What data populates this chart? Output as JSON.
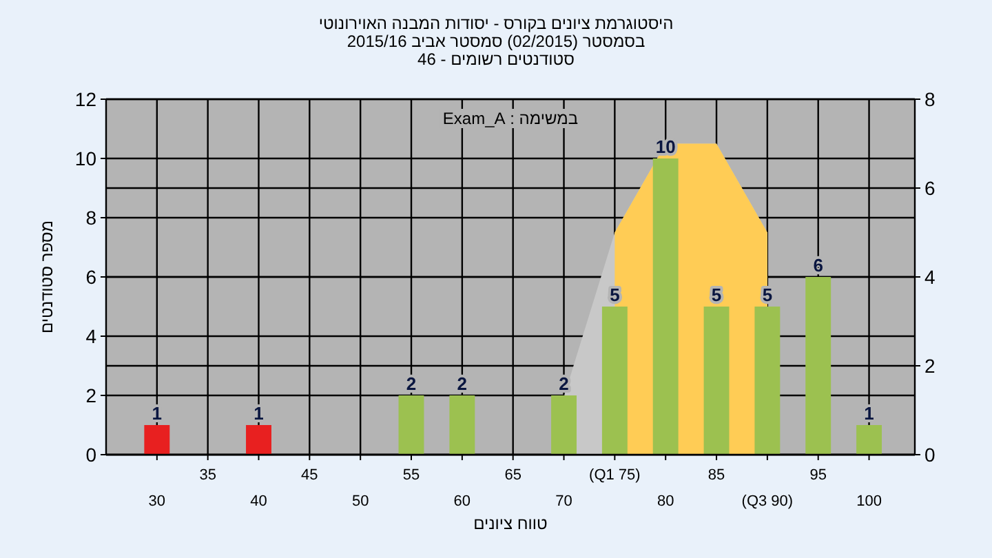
{
  "chart_data": {
    "type": "bar",
    "title": "היסטוגרמת ציונים בקורס - יסודות המבנה האוירונוטי",
    "subtitle": "בסמסטר  (02/2015)  סמסטר אביב 2015/16",
    "annotations": [
      "סטודנטים רשומים - 46",
      "במשימה : Exam_A"
    ],
    "xlabel": "טווח ציונים",
    "ylabel": "מספר סטודנטים",
    "categories": [
      "30",
      "35",
      "40",
      "45",
      "50",
      "55",
      "60",
      "65",
      "70",
      "(Q1 75)",
      "80",
      "85",
      "(Q3 90)",
      "95",
      "100"
    ],
    "series": [
      {
        "type": "area",
        "axis": "y2",
        "color": "#c8c8c8",
        "values": [
          null,
          null,
          null,
          null,
          null,
          null,
          null,
          null,
          1.3,
          5,
          7,
          7,
          5,
          null,
          null
        ]
      },
      {
        "type": "area",
        "axis": "y2",
        "color": "#ffcc55",
        "values": [
          null,
          null,
          null,
          null,
          null,
          null,
          null,
          null,
          null,
          5,
          7,
          7,
          5,
          null,
          null
        ]
      },
      {
        "colors": [
          "#e82020",
          "#9cc150",
          "#e82020",
          "#9cc150",
          "#9cc150",
          "#9cc150",
          "#9cc150",
          "#9cc150",
          "#9cc150",
          "#9cc150",
          "#9cc150",
          "#9cc150",
          "#9cc150",
          "#9cc150",
          "#9cc150"
        ],
        "values": [
          1,
          0,
          1,
          0,
          0,
          2,
          2,
          0,
          2,
          5,
          10,
          5,
          5,
          6,
          1
        ],
        "value_labels": [
          "1",
          null,
          "1",
          null,
          null,
          "2",
          "2",
          null,
          "2",
          "5",
          "10",
          "5",
          "5",
          "6",
          "1"
        ]
      }
    ],
    "ylim": [
      0,
      12
    ],
    "yticks": [
      0,
      2,
      4,
      6,
      8,
      10,
      12
    ],
    "y2lim": [
      0,
      8
    ],
    "y2ticks": [
      0,
      2,
      4,
      6,
      8
    ],
    "grid": true
  }
}
